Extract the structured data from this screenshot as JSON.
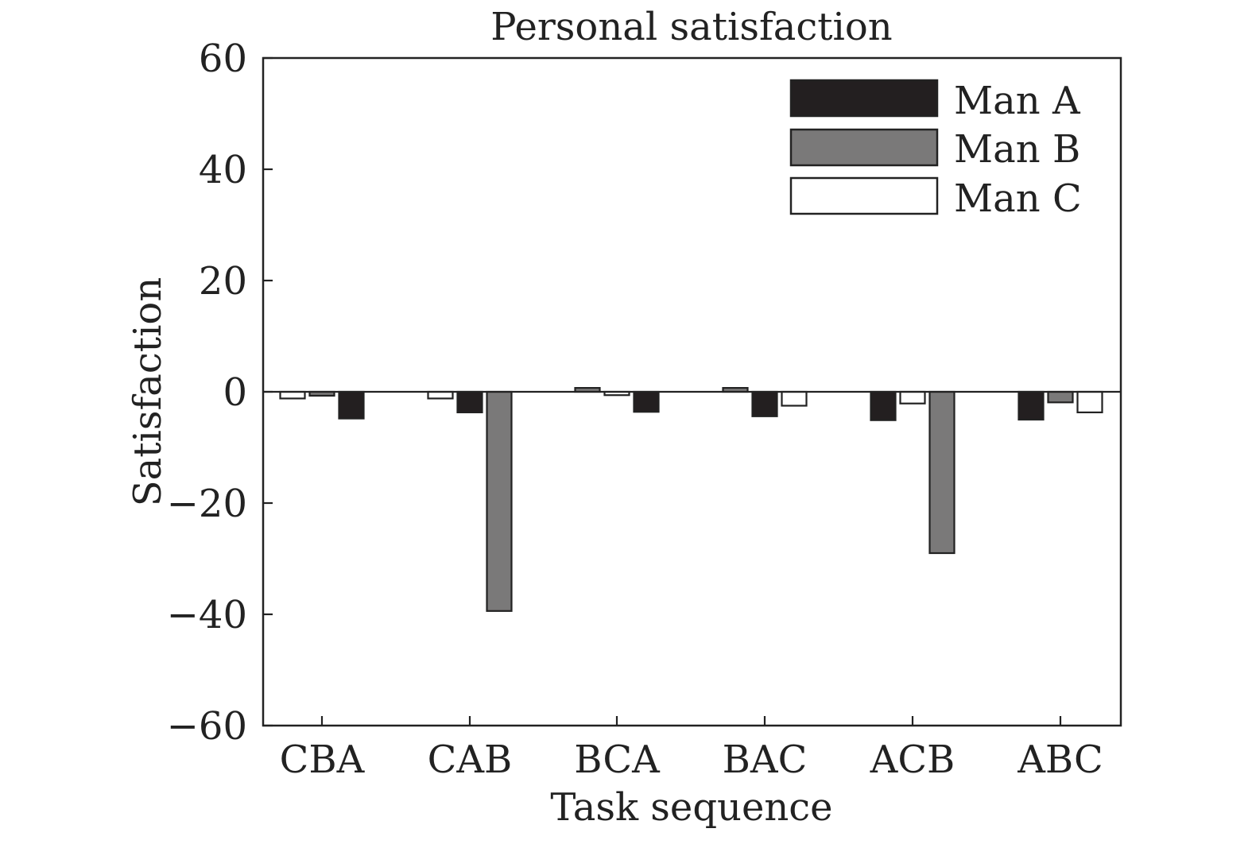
{
  "chart_data": {
    "type": "bar",
    "title": "Personal satisfaction",
    "xlabel": "Task sequence",
    "ylabel": "Satisfaction",
    "categories": [
      "CBA",
      "CAB",
      "BCA",
      "BAC",
      "ACB",
      "ABC"
    ],
    "series": [
      {
        "name": "Man A",
        "color": "#231f20",
        "values": {
          "CBA": -4.8,
          "CAB": -3.7,
          "BCA": -3.6,
          "BAC": -4.4,
          "ACB": -5.1,
          "ABC": -5.0
        }
      },
      {
        "name": "Man B",
        "color": "#7a7979",
        "values": {
          "CBA": -0.7,
          "CAB": -39.4,
          "BCA": 0.7,
          "BAC": 0.7,
          "ACB": -29.0,
          "ABC": -1.9
        }
      },
      {
        "name": "Man C",
        "color": "#ffffff",
        "values": {
          "CBA": -1.2,
          "CAB": -1.2,
          "BCA": -0.6,
          "BAC": -2.5,
          "ACB": -2.1,
          "ABC": -3.7
        }
      }
    ],
    "bar_order": {
      "CBA": [
        "Man C",
        "Man B",
        "Man A"
      ],
      "CAB": [
        "Man C",
        "Man A",
        "Man B"
      ],
      "BCA": [
        "Man B",
        "Man C",
        "Man A"
      ],
      "BAC": [
        "Man B",
        "Man A",
        "Man C"
      ],
      "ACB": [
        "Man A",
        "Man C",
        "Man B"
      ],
      "ABC": [
        "Man A",
        "Man B",
        "Man C"
      ]
    },
    "ylim": [
      -60,
      60
    ],
    "yticks": [
      60,
      40,
      20,
      0,
      -20,
      -40,
      -60
    ],
    "ytick_labels": [
      "60",
      "40",
      "20",
      "0",
      "−20",
      "−40",
      "−60"
    ],
    "zero_line": true,
    "grid": false,
    "legend_position": "top-right"
  }
}
